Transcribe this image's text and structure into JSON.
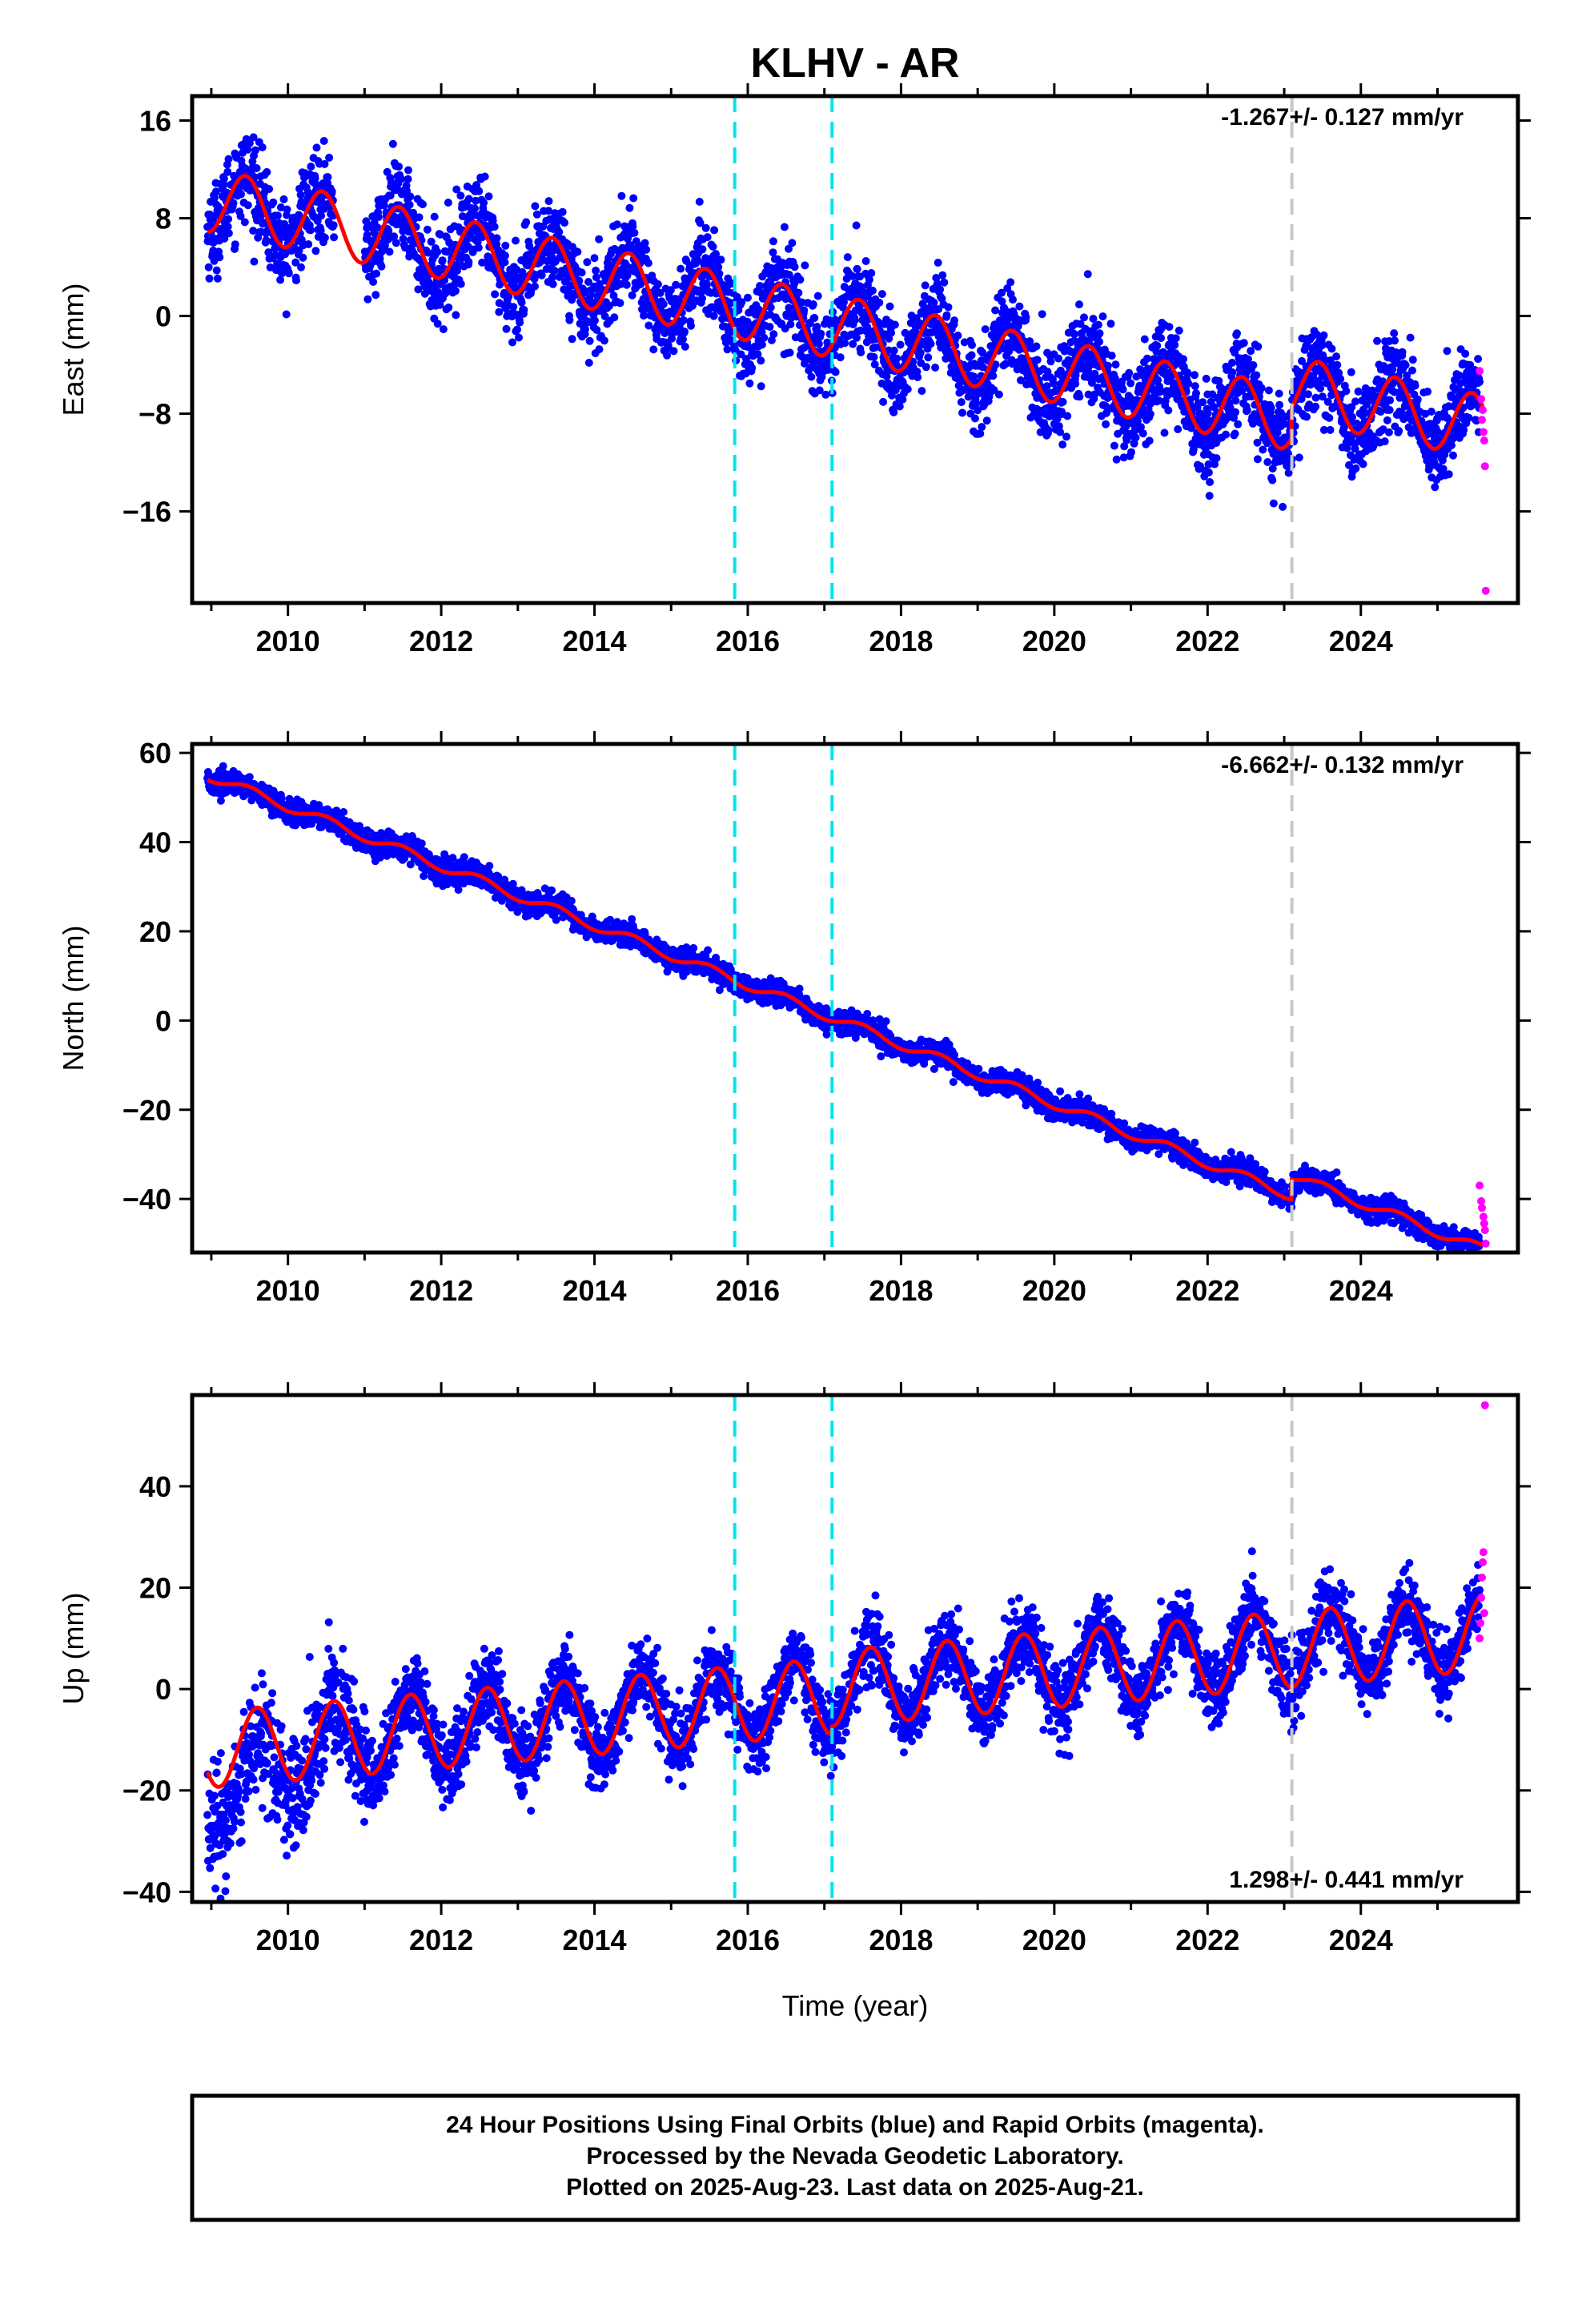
{
  "title": "KLHV - AR",
  "xlabel": "Time (year)",
  "colors": {
    "final_orbits": "#0000ff",
    "rapid_orbits": "#ff00ff",
    "model": "#ff0000",
    "equipment_change": "#00e5f0",
    "earthquake": "#c8c8c8"
  },
  "footer": {
    "line1": "24 Hour Positions Using Final Orbits (blue) and Rapid Orbits (magenta).",
    "line2": "Processed by the Nevada Geodetic Laboratory.",
    "line3": "Plotted on 2025-Aug-23. Last data on 2025-Aug-21."
  },
  "chart_data": [
    {
      "type": "scatter",
      "panel": "east",
      "ylabel": "East (mm)",
      "rate_text": "-1.267+/- 0.127 mm/yr",
      "rate_position": "top-right",
      "xlim": [
        2008.75,
        2026.05
      ],
      "ylim": [
        -23.5,
        18
      ],
      "yticks": [
        16,
        8,
        0,
        -8,
        -16
      ],
      "xticks": [
        2010,
        2012,
        2014,
        2016,
        2018,
        2020,
        2022,
        2024
      ],
      "series_model": {
        "start_value": 9.5,
        "end_value": -6.5,
        "rate_mm_per_yr": -1.267,
        "seasonal_amplitude": 2.6,
        "phase_peak_fraction": 0.45,
        "offsets": [
          {
            "year": 2023.1,
            "jump": 2.5
          }
        ]
      },
      "scatter_noise": 1.8,
      "rapid_points": [
        [
          2025.55,
          -4.5
        ],
        [
          2025.57,
          -6.8
        ],
        [
          2025.58,
          -8.5
        ],
        [
          2025.6,
          -9.5
        ],
        [
          2025.61,
          -10.2
        ],
        [
          2025.59,
          -7.7
        ],
        [
          2025.62,
          -12.3
        ],
        [
          2025.63,
          -22.5
        ]
      ],
      "equipment_change_lines": [
        2015.83,
        2017.1
      ],
      "earthquake_lines": [
        2023.1
      ]
    },
    {
      "type": "scatter",
      "panel": "north",
      "ylabel": "North (mm)",
      "rate_text": "-6.662+/- 0.132 mm/yr",
      "rate_position": "top-right",
      "xlim": [
        2008.75,
        2026.05
      ],
      "ylim": [
        -52,
        62
      ],
      "yticks": [
        60,
        40,
        20,
        0,
        -20,
        -40
      ],
      "xticks": [
        2010,
        2012,
        2014,
        2016,
        2018,
        2020,
        2022,
        2024
      ],
      "series_model": {
        "start_value": 55,
        "end_value": -46.5,
        "rate_mm_per_yr": -6.662,
        "seasonal_amplitude": 1.1,
        "phase_peak_fraction": 0.5,
        "offsets": [
          {
            "year": 2023.1,
            "jump": 4.5
          }
        ]
      },
      "scatter_noise": 1.3,
      "rapid_points": [
        [
          2025.55,
          -37.0
        ],
        [
          2025.57,
          -40.5
        ],
        [
          2025.58,
          -42.0
        ],
        [
          2025.6,
          -44.0
        ],
        [
          2025.61,
          -45.5
        ],
        [
          2025.62,
          -47.0
        ],
        [
          2025.63,
          -50.0
        ]
      ],
      "equipment_change_lines": [
        2015.83,
        2017.1
      ],
      "earthquake_lines": [
        2023.1
      ]
    },
    {
      "type": "scatter",
      "panel": "up",
      "ylabel": "Up (mm)",
      "rate_text": "1.298+/- 0.441 mm/yr",
      "rate_position": "bottom-right",
      "xlim": [
        2008.75,
        2026.05
      ],
      "ylim": [
        -42,
        58
      ],
      "yticks": [
        40,
        20,
        0,
        -20,
        -40
      ],
      "xticks": [
        2010,
        2012,
        2014,
        2016,
        2018,
        2020,
        2022,
        2024
      ],
      "series_model": {
        "start_value": -12,
        "end_value": 12,
        "rate_mm_per_yr": 1.298,
        "seasonal_amplitude": 7.5,
        "phase_peak_fraction": 0.6,
        "offsets": [
          {
            "year": 2017.1,
            "jump": 1.5
          }
        ]
      },
      "scatter_noise": 3.6,
      "rapid_points": [
        [
          2025.55,
          10.0
        ],
        [
          2025.56,
          13.0
        ],
        [
          2025.57,
          18.0
        ],
        [
          2025.58,
          22.0
        ],
        [
          2025.59,
          25.0
        ],
        [
          2025.6,
          27.0
        ],
        [
          2025.61,
          15.0
        ],
        [
          2025.62,
          56.0
        ]
      ],
      "equipment_change_lines": [
        2015.83,
        2017.1
      ],
      "earthquake_lines": [
        2023.1
      ]
    }
  ]
}
